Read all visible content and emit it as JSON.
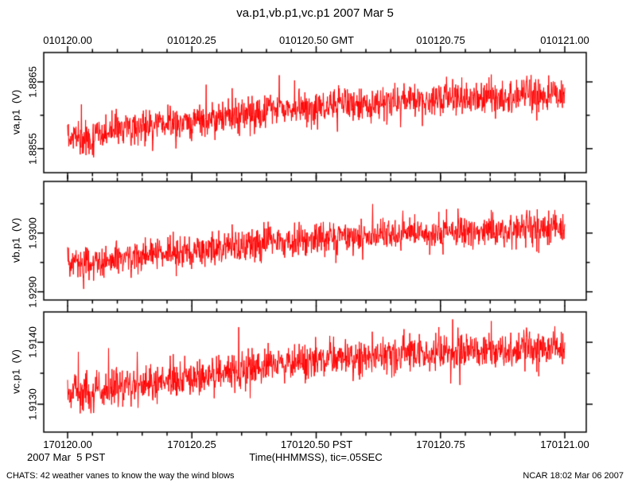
{
  "title": "va.p1,vb.p1,vc.p1 2007 Mar 5",
  "footer": {
    "left": "CHATS: 42 weather vanes to know the way the wind blows",
    "right": "NCAR 18:02 Mar 06 2007"
  },
  "colors": {
    "trace": "#ff0000",
    "axis": "#000000",
    "background": "#ffffff"
  },
  "chart_data": {
    "type": "line",
    "title": "va.p1,vb.p1,vc.p1 2007 Mar 5",
    "layout": "3 stacked panels, shared x axis, ticks outward, grid off, no legend",
    "x_axis": {
      "top_labels": [
        "010120.00",
        "010120.25",
        "010120.50 GMT",
        "010120.75",
        "010121.00"
      ],
      "bottom_labels": [
        "170120.00",
        "170120.25",
        "170120.50 PST",
        "170120.75",
        "170121.00"
      ],
      "sub_left": "2007 Mar  5 PST",
      "sub_center": "Time(HHMMSS), tic=.05SEC",
      "major_fractions": [
        0,
        0.25,
        0.5,
        0.75,
        1.0
      ],
      "minor_step_fraction": 0.05,
      "note": "x = one minute 010120-010121 GMT (170120-170121 PST), tic = .05 sec"
    },
    "samples_per_panel": 1300,
    "noise_note": "traces are dense red noise around a slowly rising trend; values below are volts",
    "panels": [
      {
        "name": "va.p1",
        "axis_label": "va.p1  (V)",
        "ymin": 1.88514,
        "ymax": 1.88694,
        "yticks": [
          {
            "v": 1.8855,
            "major": true
          },
          {
            "v": 1.886,
            "major": false
          },
          {
            "v": 1.8865,
            "major": true
          }
        ],
        "ytick_label_upper": "1.8865",
        "ytick_label_lower": "1.8855",
        "noise_sigma": 0.00013,
        "trend": [
          [
            0,
            1.88573
          ],
          [
            0.04,
            1.88563
          ],
          [
            0.08,
            1.88577
          ],
          [
            0.15,
            1.88582
          ],
          [
            0.22,
            1.88588
          ],
          [
            0.3,
            1.88595
          ],
          [
            0.38,
            1.88605
          ],
          [
            0.45,
            1.88612
          ],
          [
            0.5,
            1.88609
          ],
          [
            0.55,
            1.88618
          ],
          [
            0.62,
            1.88615
          ],
          [
            0.7,
            1.88623
          ],
          [
            0.8,
            1.88625
          ],
          [
            0.9,
            1.88627
          ],
          [
            1,
            1.8863
          ]
        ]
      },
      {
        "name": "vb.p1",
        "axis_label": "vb.p1  (V)",
        "ymin": 1.92886,
        "ymax": 1.93088,
        "yticks": [
          {
            "v": 1.929,
            "major": true
          },
          {
            "v": 1.9295,
            "major": false
          },
          {
            "v": 1.93,
            "major": true
          },
          {
            "v": 1.9305,
            "major": false
          }
        ],
        "ytick_label_upper": "1.9300",
        "ytick_label_lower": "1.9290",
        "noise_sigma": 0.00014,
        "trend": [
          [
            0,
            1.92953
          ],
          [
            0.05,
            1.92948
          ],
          [
            0.1,
            1.92957
          ],
          [
            0.18,
            1.92963
          ],
          [
            0.25,
            1.92969
          ],
          [
            0.33,
            1.92976
          ],
          [
            0.4,
            1.92984
          ],
          [
            0.47,
            1.92989
          ],
          [
            0.55,
            1.92993
          ],
          [
            0.65,
            1.92997
          ],
          [
            0.75,
            1.93001
          ],
          [
            0.85,
            1.93004
          ],
          [
            1,
            1.93007
          ]
        ]
      },
      {
        "name": "vc.p1",
        "axis_label": "vc.p1  (V)",
        "ymin": 1.91255,
        "ymax": 1.91449,
        "yticks": [
          {
            "v": 1.913,
            "major": true
          },
          {
            "v": 1.9135,
            "major": false
          },
          {
            "v": 1.914,
            "major": true
          }
        ],
        "ytick_label_upper": "1.9140",
        "ytick_label_lower": "1.9130",
        "noise_sigma": 0.00015,
        "trend": [
          [
            0,
            1.91323
          ],
          [
            0.05,
            1.91318
          ],
          [
            0.1,
            1.91327
          ],
          [
            0.18,
            1.91335
          ],
          [
            0.25,
            1.91343
          ],
          [
            0.33,
            1.91352
          ],
          [
            0.4,
            1.91363
          ],
          [
            0.47,
            1.91369
          ],
          [
            0.55,
            1.91374
          ],
          [
            0.65,
            1.9138
          ],
          [
            0.75,
            1.91384
          ],
          [
            0.85,
            1.91386
          ],
          [
            1,
            1.9139
          ]
        ]
      }
    ]
  }
}
